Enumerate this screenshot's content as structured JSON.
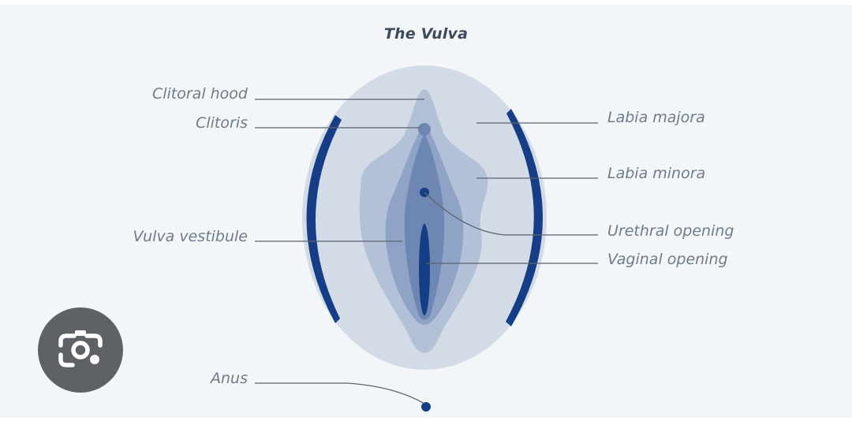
{
  "title": "The Vulva",
  "labels": {
    "clitoral_hood": "Clitoral hood",
    "clitoris": "Clitoris",
    "vulva_vestibule": "Vulva vestibule",
    "anus": "Anus",
    "labia_majora": "Labia majora",
    "labia_minora": "Labia minora",
    "urethral_opening": "Urethral opening",
    "vaginal_opening": "Vaginal opening"
  },
  "colors": {
    "background": "#f3f6f8",
    "outer": "#d3dbe6",
    "middle": "#b3c1d8",
    "inner": "#8ea3c6",
    "core": "#6d86b2",
    "accent": "#163e86",
    "leader": "#5c6470",
    "text": "#6f7b88"
  },
  "overlay": {
    "icon": "camera-search-icon"
  }
}
